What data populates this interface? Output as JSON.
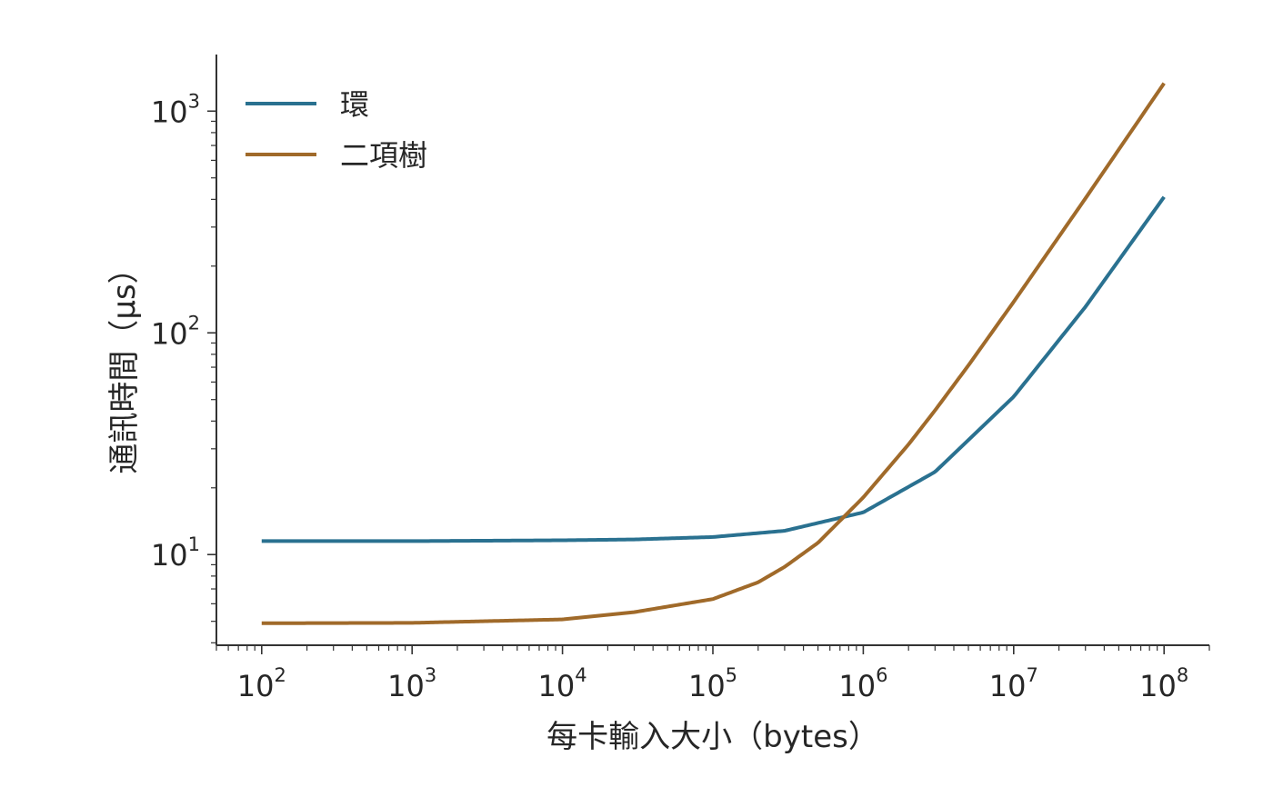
{
  "chart_data": {
    "type": "line",
    "xlabel": "每卡輸入大小（bytes）",
    "ylabel": "通訊時間（μs）",
    "x_scale": "log",
    "y_scale": "log",
    "xlim": [
      50,
      200000000
    ],
    "ylim": [
      3.9,
      1800
    ],
    "x_ticks": [
      {
        "base": "10",
        "exp": "2",
        "value": 100
      },
      {
        "base": "10",
        "exp": "3",
        "value": 1000
      },
      {
        "base": "10",
        "exp": "4",
        "value": 10000
      },
      {
        "base": "10",
        "exp": "5",
        "value": 100000
      },
      {
        "base": "10",
        "exp": "6",
        "value": 1000000
      },
      {
        "base": "10",
        "exp": "7",
        "value": 10000000
      },
      {
        "base": "10",
        "exp": "8",
        "value": 100000000
      }
    ],
    "y_ticks": [
      {
        "base": "10",
        "exp": "1",
        "value": 10
      },
      {
        "base": "10",
        "exp": "2",
        "value": 100
      },
      {
        "base": "10",
        "exp": "3",
        "value": 1000
      }
    ],
    "grid": false,
    "legend_position": "top-left",
    "series": [
      {
        "name": "環",
        "color": "#2a7190",
        "x": [
          100,
          1000,
          10000,
          30000,
          100000,
          300000,
          1000000,
          3000000,
          10000000,
          30000000,
          100000000
        ],
        "y": [
          11.5,
          11.5,
          11.6,
          11.7,
          12.0,
          12.8,
          15.5,
          23.6,
          51.5,
          131,
          410
        ]
      },
      {
        "name": "二項樹",
        "color": "#a06a2a",
        "x": [
          100,
          1000,
          10000,
          30000,
          100000,
          200000,
          300000,
          500000,
          1000000,
          2000000,
          3000000,
          5000000,
          10000000,
          30000000,
          100000000
        ],
        "y": [
          4.9,
          4.92,
          5.1,
          5.5,
          6.3,
          7.5,
          8.8,
          11.3,
          18.1,
          31.4,
          44.7,
          71.3,
          138,
          404,
          1336
        ]
      }
    ]
  }
}
